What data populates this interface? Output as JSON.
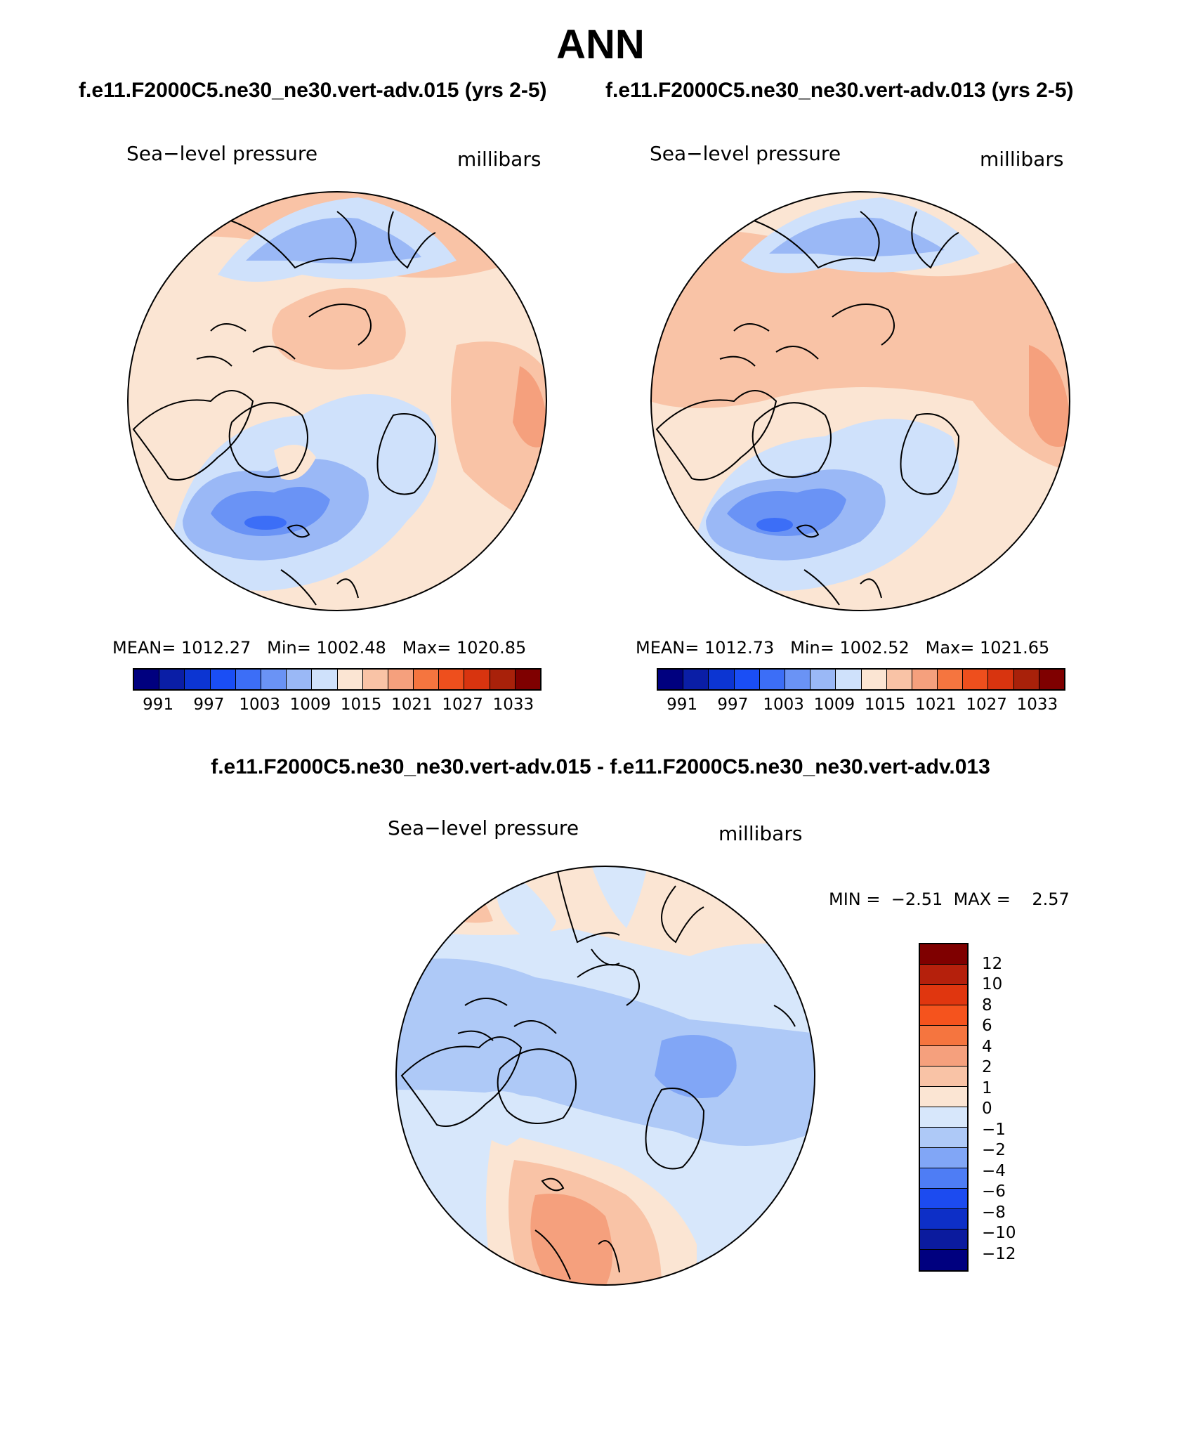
{
  "title": "ANN",
  "case_a": "f.e11.F2000C5.ne30_ne30.vert-adv.015 (yrs 2-5)",
  "case_b": "f.e11.F2000C5.ne30_ne30.vert-adv.013 (yrs 2-5)",
  "diff_title": "f.e11.F2000C5.ne30_ne30.vert-adv.015 - f.e11.F2000C5.ne30_ne30.vert-adv.013",
  "panels": [
    {
      "variable": "Sea−level pressure",
      "units": "millibars",
      "mean_label": "MEAN=",
      "mean": "1012.27",
      "min_label": "Min=",
      "min": "1002.48",
      "max_label": "Max=",
      "max": "1020.85"
    },
    {
      "variable": "Sea−level pressure",
      "units": "millibars",
      "mean_label": "MEAN=",
      "mean": "1012.73",
      "min_label": "Min=",
      "min": "1002.52",
      "max_label": "Max=",
      "max": "1021.65"
    }
  ],
  "diff_panel": {
    "variable": "Sea−level pressure",
    "units": "millibars",
    "min_label": "MIN =",
    "min": "−2.51",
    "max_label": "MAX =",
    "max": "2.57"
  },
  "colorbar_abs": {
    "ticks": [
      "991",
      "997",
      "1003",
      "1009",
      "1015",
      "1021",
      "1027",
      "1033"
    ],
    "colors": [
      "#00007f",
      "#0a1ea6",
      "#0c35d2",
      "#1a4ef5",
      "#3c6ef7",
      "#6a93f5",
      "#9ab8f6",
      "#cfe1fb",
      "#fbe5d3",
      "#f9c3a6",
      "#f5a07d",
      "#f5753f",
      "#ee4f1d",
      "#d8340f",
      "#a8210a",
      "#7f0000"
    ]
  },
  "colorbar_diff": {
    "ticks": [
      "12",
      "10",
      "8",
      "6",
      "4",
      "2",
      "1",
      "0",
      "−1",
      "−2",
      "−4",
      "−6",
      "−8",
      "−10",
      "−12"
    ],
    "colors": [
      "#7f0000",
      "#b5200c",
      "#e0360f",
      "#f5531d",
      "#f5753f",
      "#f5a07d",
      "#f9c3a6",
      "#fbe5d3",
      "#d7e7fb",
      "#aec9f7",
      "#81a6f6",
      "#4e7df5",
      "#1c4bf0",
      "#0d2fc7",
      "#0b1b9e",
      "#00007f"
    ]
  }
}
